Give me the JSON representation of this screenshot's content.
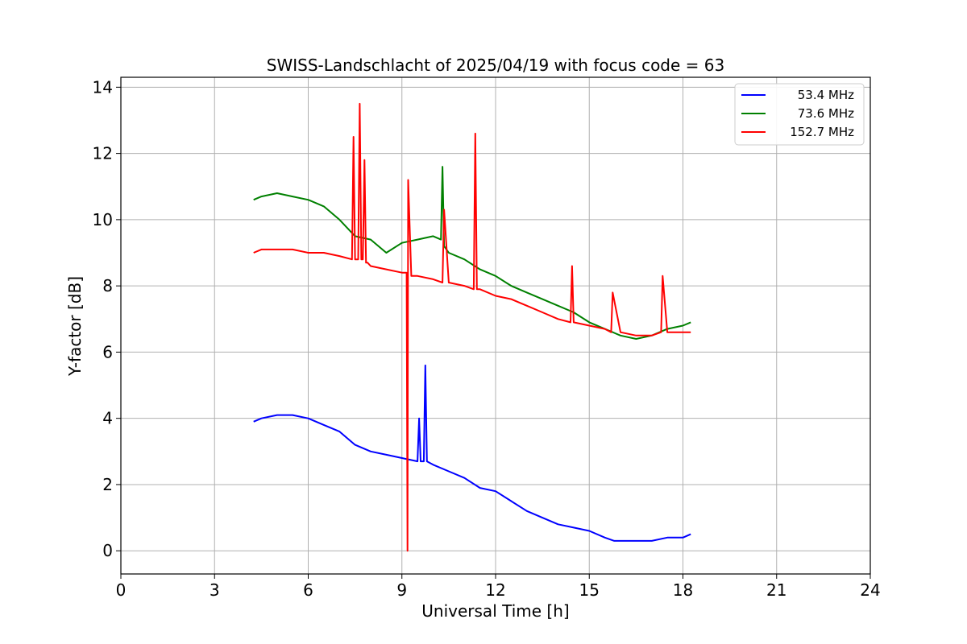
{
  "chart_data": {
    "type": "line",
    "title": "SWISS-Landschlacht of 2025/04/19 with focus code = 63",
    "xlabel": "Universal Time [h]",
    "ylabel": "Y-factor [dB]",
    "xlim": [
      0,
      24
    ],
    "ylim": [
      -0.7,
      14.3
    ],
    "xticks": [
      0,
      3,
      6,
      9,
      12,
      15,
      18,
      21,
      24
    ],
    "yticks": [
      0,
      2,
      4,
      6,
      8,
      10,
      12,
      14
    ],
    "grid": true,
    "legend_position": "top-right",
    "series": [
      {
        "name": "53.4 MHz",
        "color": "#0000ff",
        "x": [
          4.25,
          4.5,
          5.0,
          5.5,
          6.0,
          6.5,
          7.0,
          7.5,
          8.0,
          8.5,
          9.0,
          9.5,
          9.55,
          9.6,
          9.7,
          9.75,
          9.8,
          10.0,
          10.5,
          11.0,
          11.5,
          12.0,
          12.5,
          13.0,
          13.5,
          14.0,
          14.5,
          15.0,
          15.5,
          15.8,
          16.0,
          16.5,
          17.0,
          17.5,
          18.0,
          18.25
        ],
        "y": [
          3.9,
          4.0,
          4.1,
          4.1,
          4.0,
          3.8,
          3.6,
          3.2,
          3.0,
          2.9,
          2.8,
          2.7,
          4.0,
          2.7,
          2.7,
          5.6,
          2.7,
          2.6,
          2.4,
          2.2,
          1.9,
          1.8,
          1.5,
          1.2,
          1.0,
          0.8,
          0.7,
          0.6,
          0.4,
          0.3,
          0.3,
          0.3,
          0.3,
          0.4,
          0.4,
          0.5
        ]
      },
      {
        "name": "73.6 MHz",
        "color": "#008000",
        "x": [
          4.25,
          4.5,
          5.0,
          5.5,
          6.0,
          6.5,
          7.0,
          7.5,
          8.0,
          8.5,
          9.0,
          9.5,
          10.0,
          10.25,
          10.3,
          10.35,
          10.5,
          11.0,
          11.5,
          12.0,
          12.5,
          13.0,
          13.5,
          14.0,
          14.5,
          15.0,
          15.5,
          16.0,
          16.5,
          17.0,
          17.5,
          18.0,
          18.25
        ],
        "y": [
          10.6,
          10.7,
          10.8,
          10.7,
          10.6,
          10.4,
          10.0,
          9.5,
          9.4,
          9.0,
          9.3,
          9.4,
          9.5,
          9.4,
          11.6,
          9.2,
          9.0,
          8.8,
          8.5,
          8.3,
          8.0,
          7.8,
          7.6,
          7.4,
          7.2,
          6.9,
          6.7,
          6.5,
          6.4,
          6.5,
          6.7,
          6.8,
          6.9
        ]
      },
      {
        "name": "152.7 MHz",
        "color": "#ff0000",
        "x": [
          4.25,
          4.5,
          5.0,
          5.5,
          6.0,
          6.5,
          7.0,
          7.4,
          7.45,
          7.5,
          7.6,
          7.65,
          7.7,
          7.75,
          7.8,
          7.85,
          7.9,
          8.0,
          8.5,
          9.0,
          9.15,
          9.18,
          9.2,
          9.3,
          9.5,
          10.0,
          10.3,
          10.35,
          10.5,
          11.0,
          11.3,
          11.35,
          11.4,
          11.5,
          12.0,
          12.5,
          13.0,
          13.5,
          14.0,
          14.4,
          14.45,
          14.5,
          15.0,
          15.5,
          15.7,
          15.75,
          16.0,
          16.5,
          17.0,
          17.3,
          17.35,
          17.5,
          18.0,
          18.25
        ],
        "y": [
          9.0,
          9.1,
          9.1,
          9.1,
          9.0,
          9.0,
          8.9,
          8.8,
          12.5,
          8.8,
          8.8,
          13.5,
          8.8,
          8.8,
          11.8,
          8.7,
          8.7,
          8.6,
          8.5,
          8.4,
          8.4,
          0.0,
          11.2,
          8.3,
          8.3,
          8.2,
          8.1,
          10.3,
          8.1,
          8.0,
          7.9,
          12.6,
          7.9,
          7.9,
          7.7,
          7.6,
          7.4,
          7.2,
          7.0,
          6.9,
          8.6,
          6.9,
          6.8,
          6.7,
          6.6,
          7.8,
          6.6,
          6.5,
          6.5,
          6.6,
          8.3,
          6.6,
          6.6,
          6.6
        ]
      }
    ]
  }
}
